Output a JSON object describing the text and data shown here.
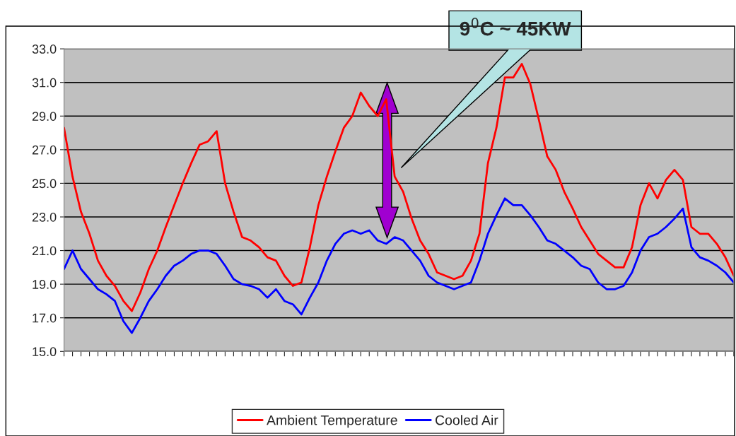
{
  "chart_data": {
    "type": "line",
    "categories": [
      null,
      null,
      null,
      null,
      null,
      null,
      null,
      null,
      null,
      null,
      null,
      null,
      null,
      null,
      null,
      null,
      null,
      null,
      null,
      null,
      null,
      null,
      null,
      null,
      null,
      null,
      null,
      null,
      null,
      null,
      null,
      null,
      null,
      null,
      null,
      null,
      null,
      null,
      null,
      null,
      null,
      null,
      null,
      null,
      null,
      null,
      null,
      null,
      null,
      null,
      null,
      null,
      null,
      null,
      null,
      null,
      null,
      null,
      null,
      null,
      null,
      null,
      null,
      null,
      null,
      null,
      null,
      null,
      null,
      null,
      null,
      null,
      null,
      null,
      null,
      null,
      null,
      null,
      null,
      null
    ],
    "series": [
      {
        "name": "Ambient Temperature",
        "color": "#ff0000",
        "values": [
          28.3,
          25.4,
          23.3,
          22.0,
          20.4,
          19.5,
          18.9,
          18.0,
          17.4,
          18.5,
          19.9,
          21.0,
          22.4,
          23.7,
          25.0,
          26.2,
          27.3,
          27.5,
          28.1,
          25.0,
          23.3,
          21.8,
          21.6,
          21.2,
          20.6,
          20.4,
          19.5,
          18.9,
          19.1,
          21.2,
          23.7,
          25.4,
          26.9,
          28.3,
          29.0,
          30.4,
          29.6,
          29.0,
          30.0,
          25.4,
          24.5,
          22.9,
          21.6,
          20.8,
          19.7,
          19.5,
          19.3,
          19.5,
          20.4,
          22.0,
          26.2,
          28.3,
          31.3,
          31.3,
          32.1,
          30.9,
          28.8,
          26.6,
          25.8,
          24.5,
          23.5,
          22.4,
          21.6,
          20.8,
          20.4,
          20.0,
          20.0,
          21.2,
          23.7,
          25.0,
          24.1,
          25.2,
          25.8,
          25.2,
          22.4,
          22.0,
          22.0,
          21.4,
          20.6,
          19.5
        ]
      },
      {
        "name": "Cooled Air",
        "color": "#0000ff",
        "values": [
          19.9,
          21.0,
          19.9,
          19.3,
          18.7,
          18.4,
          18.0,
          16.8,
          16.1,
          17.0,
          18.0,
          18.7,
          19.5,
          20.1,
          20.4,
          20.8,
          21.0,
          21.0,
          20.8,
          20.1,
          19.3,
          19.0,
          18.9,
          18.7,
          18.2,
          18.7,
          18.0,
          17.8,
          17.2,
          18.2,
          19.1,
          20.4,
          21.4,
          22.0,
          22.2,
          22.0,
          22.2,
          21.6,
          21.4,
          21.8,
          21.6,
          21.0,
          20.4,
          19.5,
          19.1,
          18.9,
          18.7,
          18.9,
          19.1,
          20.4,
          22.0,
          23.1,
          24.1,
          23.7,
          23.7,
          23.1,
          22.4,
          21.6,
          21.4,
          21.0,
          20.6,
          20.1,
          19.9,
          19.1,
          18.7,
          18.7,
          18.9,
          19.7,
          21.0,
          21.8,
          22.0,
          22.4,
          22.9,
          23.5,
          21.2,
          20.6,
          20.4,
          20.1,
          19.7,
          19.1
        ]
      }
    ],
    "ylim": [
      15,
      33
    ],
    "yticks": [
      {
        "value": 15,
        "label": "15.0"
      },
      {
        "value": 17,
        "label": "17.0"
      },
      {
        "value": 19,
        "label": "19.0"
      },
      {
        "value": 21,
        "label": "21.0"
      },
      {
        "value": 23,
        "label": "23.0"
      },
      {
        "value": 25,
        "label": "25.0"
      },
      {
        "value": 27,
        "label": "27.0"
      },
      {
        "value": 29,
        "label": "29.0"
      },
      {
        "value": 31,
        "label": "31.0"
      },
      {
        "value": 33,
        "label": "33.0"
      }
    ],
    "grid": "y",
    "legend": "bottom",
    "tick_labels": "y",
    "marker": "none",
    "line_style": "solid",
    "annotations": [
      "9$^{0}$C ~ 45KW"
    ]
  }
}
